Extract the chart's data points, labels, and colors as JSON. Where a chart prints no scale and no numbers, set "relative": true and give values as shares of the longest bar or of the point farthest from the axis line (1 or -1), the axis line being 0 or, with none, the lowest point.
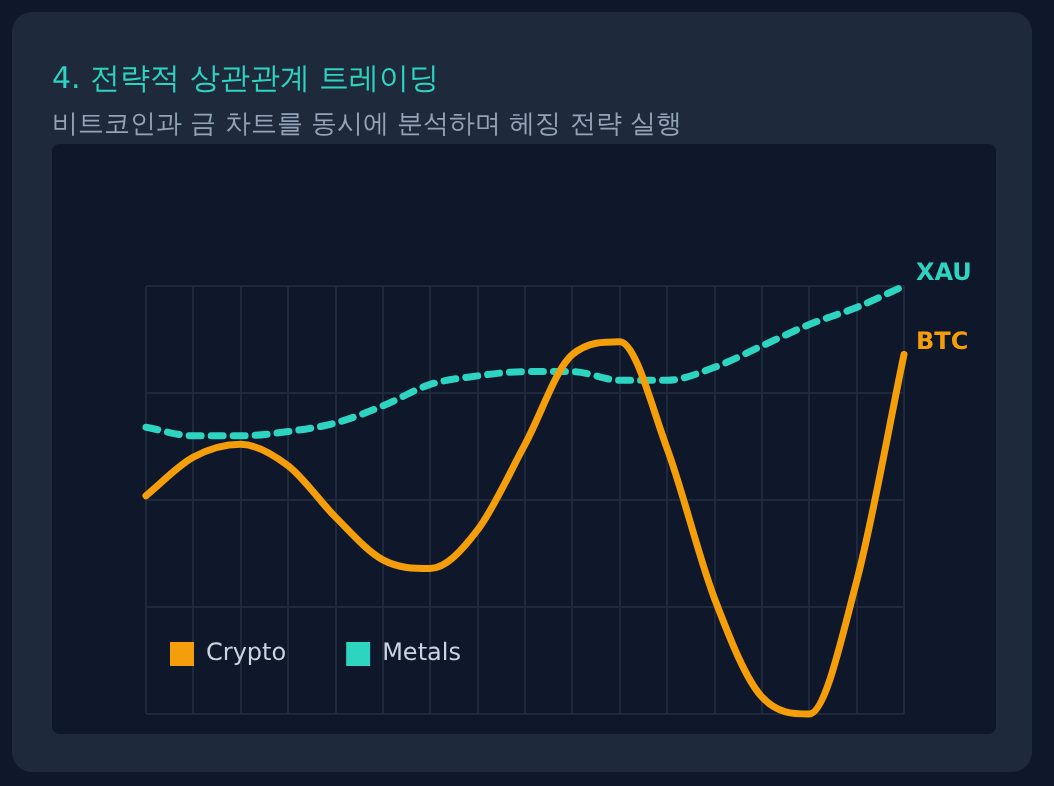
{
  "chart_data": {
    "type": "line",
    "title": "4. 전략적 상관관계 트레이딩",
    "subtitle": "비트코인과 금 차트를 동시에 분석하며 헤징 전략 실행",
    "categories": [
      null,
      null,
      null,
      null,
      null,
      null,
      null,
      null,
      null,
      null,
      null,
      null,
      null,
      null,
      null,
      null,
      null
    ],
    "relative": true,
    "grid": true,
    "legend": "bottom left",
    "marker": "none",
    "series": [
      {
        "name": "Crypto",
        "color": "#f59e0b",
        "line_style": "solid",
        "values": [
          0.51,
          0.6,
          0.63,
          0.58,
          0.46,
          0.36,
          0.34,
          0.43,
          0.63,
          0.84,
          0.87,
          0.62,
          0.27,
          0.04,
          0.0,
          0.31,
          0.84
        ]
      },
      {
        "name": "Metals",
        "color": "#2dd4bf",
        "line_style": "dashed",
        "values": [
          0.67,
          0.65,
          0.65,
          0.66,
          0.68,
          0.72,
          0.77,
          0.79,
          0.8,
          0.8,
          0.78,
          0.78,
          0.81,
          0.86,
          0.91,
          0.95,
          1.0
        ]
      }
    ],
    "annotations": [
      "BTC",
      "XAU"
    ]
  }
}
